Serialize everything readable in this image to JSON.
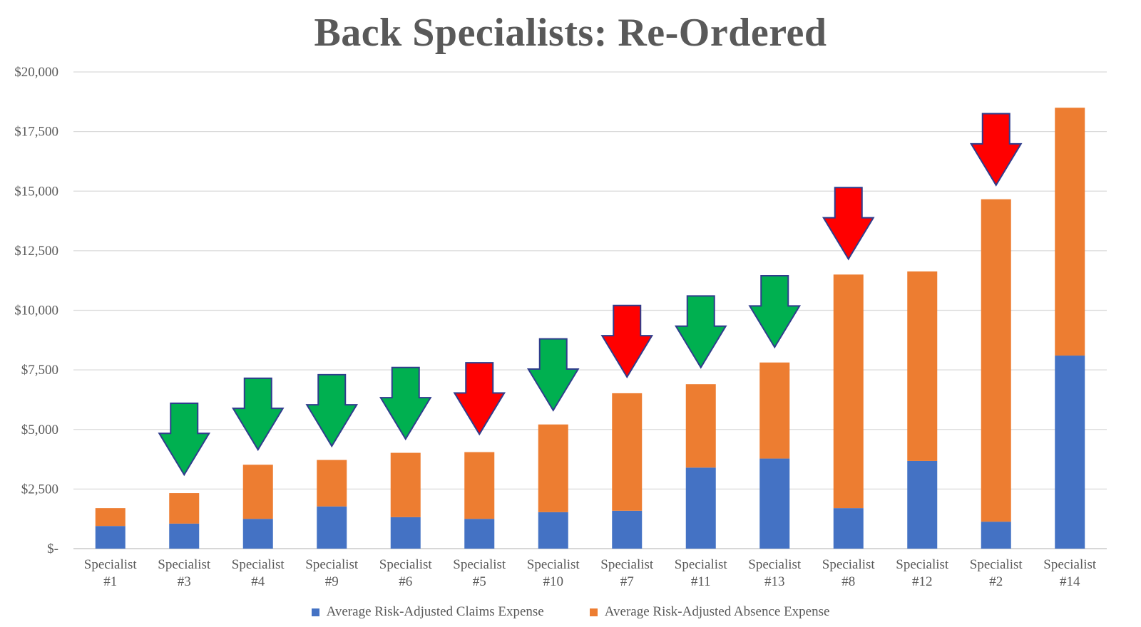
{
  "chart_data": {
    "type": "bar",
    "stacked": true,
    "title": "Back Specialists: Re-Ordered",
    "categories": [
      [
        "Specialist",
        "#1"
      ],
      [
        "Specialist",
        "#3"
      ],
      [
        "Specialist",
        "#4"
      ],
      [
        "Specialist",
        "#9"
      ],
      [
        "Specialist",
        "#6"
      ],
      [
        "Specialist",
        "#5"
      ],
      [
        "Specialist",
        "#10"
      ],
      [
        "Specialist",
        "#7"
      ],
      [
        "Specialist",
        "#11"
      ],
      [
        "Specialist",
        "#13"
      ],
      [
        "Specialist",
        "#8"
      ],
      [
        "Specialist",
        "#12"
      ],
      [
        "Specialist",
        "#2"
      ],
      [
        "Specialist",
        "#14"
      ]
    ],
    "series": [
      {
        "name": "Average Risk-Adjusted Claims Expense",
        "color": "#4472C4",
        "values": [
          950,
          1050,
          1250,
          1770,
          1320,
          1250,
          1530,
          1590,
          3400,
          3780,
          1700,
          3680,
          1130,
          8100
        ]
      },
      {
        "name": "Average Risk-Adjusted Absence Expense",
        "color": "#ED7D31",
        "values": [
          750,
          1280,
          2270,
          1950,
          2700,
          2800,
          3680,
          4930,
          3500,
          4030,
          9800,
          7950,
          13530,
          10400
        ]
      }
    ],
    "y_ticks": [
      "$-",
      "$2,500",
      "$5,000",
      "$7,500",
      "$10,000",
      "$12,500",
      "$15,000",
      "$17,500",
      "$20,000"
    ],
    "ylim": [
      0,
      20000
    ],
    "grid": true,
    "legend_position": "bottom",
    "annotations": [
      {
        "category_index": 1,
        "kind": "arrow-down",
        "color": "green",
        "tail_value": 6100,
        "tip_value": 3100
      },
      {
        "category_index": 2,
        "kind": "arrow-down",
        "color": "green",
        "tail_value": 7150,
        "tip_value": 4150
      },
      {
        "category_index": 3,
        "kind": "arrow-down",
        "color": "green",
        "tail_value": 7300,
        "tip_value": 4300
      },
      {
        "category_index": 4,
        "kind": "arrow-down",
        "color": "green",
        "tail_value": 7600,
        "tip_value": 4600
      },
      {
        "category_index": 5,
        "kind": "arrow-down",
        "color": "red",
        "tail_value": 7800,
        "tip_value": 4800
      },
      {
        "category_index": 6,
        "kind": "arrow-down",
        "color": "green",
        "tail_value": 8800,
        "tip_value": 5800
      },
      {
        "category_index": 7,
        "kind": "arrow-down",
        "color": "red",
        "tail_value": 10200,
        "tip_value": 7200
      },
      {
        "category_index": 8,
        "kind": "arrow-down",
        "color": "green",
        "tail_value": 10600,
        "tip_value": 7600
      },
      {
        "category_index": 9,
        "kind": "arrow-down",
        "color": "green",
        "tail_value": 11450,
        "tip_value": 8450
      },
      {
        "category_index": 10,
        "kind": "arrow-down",
        "color": "red",
        "tail_value": 15150,
        "tip_value": 12150
      },
      {
        "category_index": 12,
        "kind": "arrow-down",
        "color": "red",
        "tail_value": 18250,
        "tip_value": 15250
      }
    ],
    "colors": {
      "green": "#00B050",
      "red": "#FF0000",
      "arrow_outline": "#2F3C8C",
      "grid": "#D9D9D9",
      "axis": "#BFBFBF"
    }
  }
}
